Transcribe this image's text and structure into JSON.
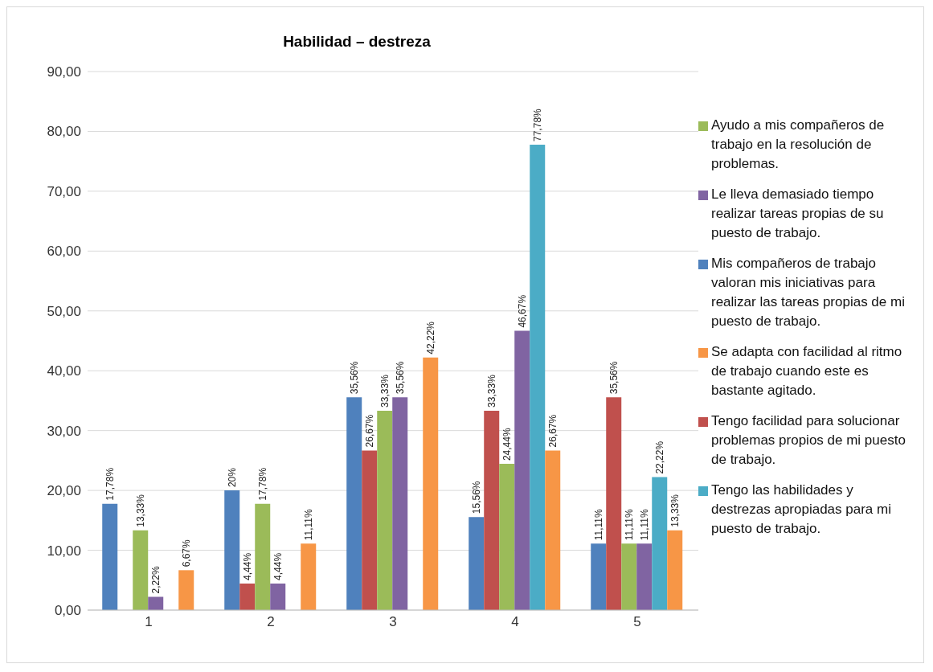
{
  "chart_data": {
    "type": "bar",
    "title": "Habilidad – destreza",
    "categories": [
      "1",
      "2",
      "3",
      "4",
      "5"
    ],
    "series": [
      {
        "name": "Mis compañeros de trabajo valoran mis iniciativas para realizar las tareas propias de mi puesto de trabajo.",
        "color": "#4f81bd",
        "values": [
          17.78,
          20,
          35.56,
          15.56,
          11.11
        ],
        "value_labels": [
          "17,78%",
          "20%",
          "35,56%",
          "15,56%",
          "11,11%"
        ]
      },
      {
        "name": "Tengo facilidad para solucionar problemas propios de mi puesto de trabajo.",
        "color": "#c0504d",
        "values": [
          null,
          4.44,
          26.67,
          33.33,
          35.56
        ],
        "value_labels": [
          null,
          "4,44%",
          "26,67%",
          "33,33%",
          "35,56%"
        ]
      },
      {
        "name": "Ayudo a mis compañeros de trabajo en la resolución de problemas.",
        "color": "#9bbb59",
        "values": [
          13.33,
          17.78,
          33.33,
          24.44,
          11.11
        ],
        "value_labels": [
          "13,33%",
          "17,78%",
          "33,33%",
          "24,44%",
          "11,11%"
        ]
      },
      {
        "name": "Le lleva demasiado tiempo realizar tareas propias de su puesto de trabajo.",
        "color": "#8064a2",
        "values": [
          2.22,
          4.44,
          35.56,
          46.67,
          11.11
        ],
        "value_labels": [
          "2,22%",
          "4,44%",
          "35,56%",
          "46,67%",
          "11,11%"
        ]
      },
      {
        "name": "Tengo las habilidades y destrezas apropiadas para mi puesto de trabajo.",
        "color": "#4bacc6",
        "values": [
          null,
          null,
          null,
          77.78,
          22.22
        ],
        "value_labels": [
          null,
          null,
          null,
          "77,78%",
          "22,22%"
        ]
      },
      {
        "name": "Se adapta con facilidad al ritmo de trabajo cuando este es bastante agitado.",
        "color": "#f79646",
        "values": [
          6.67,
          11.11,
          42.22,
          26.67,
          13.33
        ],
        "value_labels": [
          "6,67%",
          "11,11%",
          "42,22%",
          "26,67%",
          "13,33%"
        ]
      }
    ],
    "ylim": [
      0,
      90
    ],
    "yticks": [
      {
        "value": 0,
        "label": "0,00"
      },
      {
        "value": 10,
        "label": "10,00"
      },
      {
        "value": 20,
        "label": "20,00"
      },
      {
        "value": 30,
        "label": "30,00"
      },
      {
        "value": 40,
        "label": "40,00"
      },
      {
        "value": 50,
        "label": "50,00"
      },
      {
        "value": 60,
        "label": "60,00"
      },
      {
        "value": 70,
        "label": "70,00"
      },
      {
        "value": 80,
        "label": "80,00"
      },
      {
        "value": 90,
        "label": "90,00"
      }
    ],
    "grid": "y",
    "legend": "right"
  }
}
